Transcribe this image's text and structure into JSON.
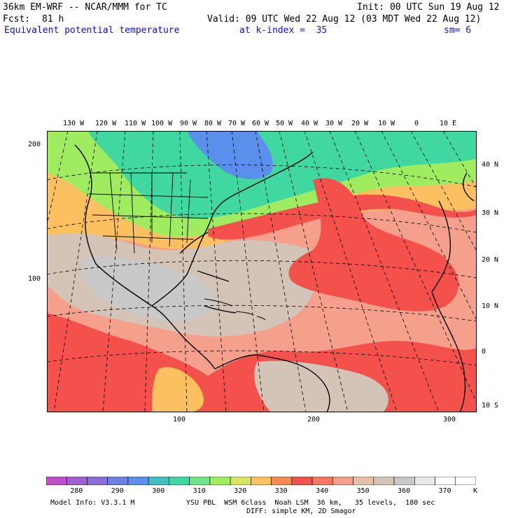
{
  "header": {
    "model": "36km EM-WRF -- NCAR/MMM for TC",
    "init": "Init: 00 UTC Sun 19 Aug 12",
    "fcst_label": "Fcst:",
    "fcst_value": "81 h",
    "valid": "Valid: 09 UTC Wed 22 Aug 12 (03 MDT Wed 22 Aug 12)",
    "field": "Equivalent potential temperature",
    "level": "at k-index =  35",
    "smoothing": "sm= 6"
  },
  "map": {
    "lon_labels": [
      "130 W",
      "120 W",
      "110 W",
      "100 W",
      "90 W",
      "80 W",
      "70 W",
      "60 W",
      "50 W",
      "40 W",
      "30 W",
      "20 W",
      "10 W",
      "0",
      "10 E"
    ],
    "lat_labels": [
      "40 N",
      "30 N",
      "20 N",
      "10 N",
      "0",
      "10 S"
    ],
    "grid_y_labels": [
      "200",
      "100"
    ],
    "grid_x_labels": [
      "100",
      "200",
      "300"
    ],
    "colors": {
      "c280": "#c050c8",
      "c290": "#8870d8",
      "c300": "#5a90ec",
      "c310": "#40d8a0",
      "c320": "#a0ec60",
      "c330": "#fcc060",
      "c340": "#f4504c",
      "c350": "#f4a08c",
      "c360": "#d4c4b8",
      "c370": "#c8c8c8",
      "c380": "#ffffff"
    }
  },
  "colorbar": {
    "colors": [
      "#c050c8",
      "#a060d0",
      "#8870d8",
      "#6c80e4",
      "#5a90ec",
      "#40c0c0",
      "#40d8a0",
      "#70e488",
      "#a0ec60",
      "#d8e464",
      "#fcc060",
      "#f88a58",
      "#f4504c",
      "#f47860",
      "#f4a08c",
      "#e8c0a8",
      "#d4c4b8",
      "#c8c8c8",
      "#e8e8e8",
      "#ffffff",
      "#ffffff"
    ],
    "tick_labels": [
      "280",
      "290",
      "300",
      "310",
      "320",
      "330",
      "340",
      "350",
      "360",
      "370"
    ],
    "units": "K"
  },
  "footer": {
    "model_info": "Model Info: V3.3.1 M",
    "physics": "YSU PBL  WSM 6class  Noah LSM  36 km,   35 levels,  180 sec",
    "diffusion": "DIFF: simple KM, 2D Smagor"
  }
}
